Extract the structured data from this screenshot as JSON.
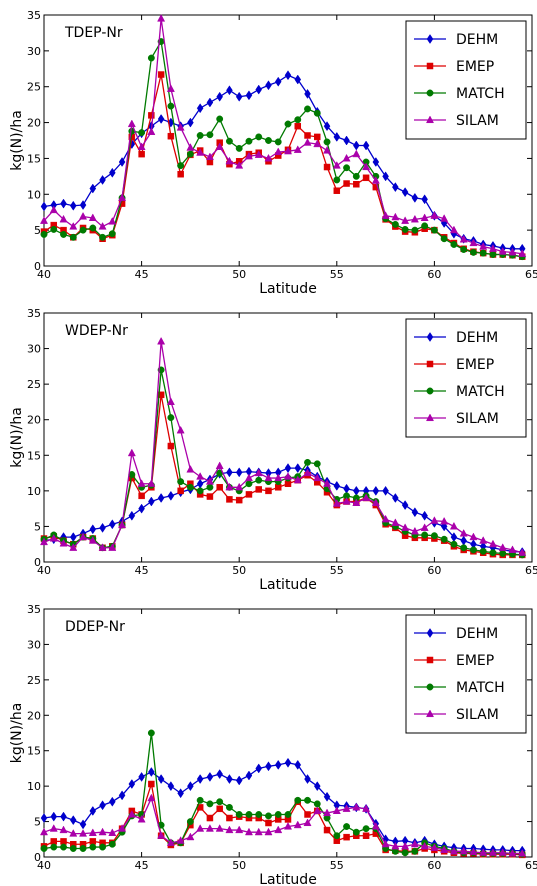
{
  "colors": {
    "DEHM": "#0000cc",
    "EMEP": "#dd0000",
    "MATCH": "#007a00",
    "SILAM": "#aa00aa"
  },
  "markers": {
    "DEHM": "diamond",
    "EMEP": "square",
    "MATCH": "circle",
    "SILAM": "triangle"
  },
  "chart_data": [
    {
      "type": "line",
      "panel_label": "TDEP-Nr",
      "xlabel": "Latitude",
      "ylabel": "kg(N)/ha",
      "xlim": [
        40,
        65
      ],
      "ylim": [
        0,
        35
      ],
      "xticks": [
        40,
        45,
        50,
        55,
        60,
        65
      ],
      "yticks": [
        0,
        5,
        10,
        15,
        20,
        25,
        30,
        35
      ],
      "legend_position": "top-right",
      "grid": false,
      "x": [
        40,
        40.5,
        41,
        41.5,
        42,
        42.5,
        43,
        43.5,
        44,
        44.5,
        45,
        45.5,
        46,
        46.5,
        47,
        47.5,
        48,
        48.5,
        49,
        49.5,
        50,
        50.5,
        51,
        51.5,
        52,
        52.5,
        53,
        53.5,
        54,
        54.5,
        55,
        55.5,
        56,
        56.5,
        57,
        57.5,
        58,
        58.5,
        59,
        59.5,
        60,
        60.5,
        61,
        61.5,
        62,
        62.5,
        63,
        63.5,
        64,
        64.5
      ],
      "series": [
        {
          "name": "DEHM",
          "values": [
            8.3,
            8.5,
            8.7,
            8.4,
            8.5,
            10.8,
            12.0,
            13.0,
            14.5,
            17.0,
            18.5,
            19.5,
            20.5,
            20.0,
            19.5,
            20.0,
            22.0,
            22.8,
            23.6,
            24.5,
            23.6,
            23.8,
            24.6,
            25.2,
            25.7,
            26.6,
            26.0,
            24.0,
            21.5,
            19.5,
            18.0,
            17.5,
            16.8,
            16.8,
            14.5,
            12.5,
            11.0,
            10.3,
            9.5,
            9.3,
            7.0,
            6.0,
            4.5,
            3.8,
            3.5,
            3.0,
            2.8,
            2.5,
            2.4,
            2.4
          ]
        },
        {
          "name": "EMEP",
          "values": [
            4.8,
            5.7,
            5.0,
            4.0,
            5.3,
            5.0,
            3.8,
            4.3,
            8.7,
            18.0,
            15.6,
            21.0,
            26.7,
            18.1,
            12.8,
            15.5,
            16.1,
            14.5,
            17.2,
            14.2,
            14.6,
            15.6,
            15.8,
            14.6,
            15.4,
            16.2,
            19.5,
            18.2,
            18.0,
            13.8,
            10.5,
            11.5,
            11.4,
            12.3,
            11.0,
            6.5,
            5.5,
            4.8,
            4.7,
            5.2,
            5.0,
            4.0,
            3.2,
            2.4,
            2.0,
            1.8,
            1.6,
            1.6,
            1.5,
            1.3
          ]
        },
        {
          "name": "MATCH",
          "values": [
            4.4,
            5.1,
            4.4,
            4.0,
            5.0,
            5.3,
            4.0,
            4.5,
            9.5,
            18.8,
            18.6,
            29.0,
            31.3,
            22.3,
            14.0,
            15.6,
            18.2,
            18.3,
            20.5,
            17.4,
            16.4,
            17.4,
            18.0,
            17.5,
            17.3,
            19.8,
            20.4,
            21.9,
            21.3,
            17.3,
            12.0,
            13.7,
            12.5,
            14.5,
            12.5,
            6.6,
            5.8,
            5.1,
            5.0,
            5.6,
            5.0,
            3.8,
            3.0,
            2.3,
            1.9,
            1.8,
            1.6,
            1.6,
            1.5,
            1.3
          ]
        },
        {
          "name": "SILAM",
          "values": [
            6.3,
            7.8,
            6.5,
            5.5,
            6.9,
            6.7,
            5.5,
            6.2,
            9.5,
            19.8,
            16.6,
            18.7,
            34.5,
            24.7,
            19.3,
            16.5,
            15.8,
            15.2,
            16.6,
            14.6,
            14.0,
            15.3,
            15.5,
            15.0,
            15.9,
            16.0,
            16.2,
            17.2,
            17.0,
            16.1,
            14.0,
            15.0,
            15.6,
            13.8,
            11.9,
            7.0,
            6.8,
            6.3,
            6.5,
            6.7,
            7.0,
            6.6,
            5.0,
            3.7,
            3.2,
            2.7,
            2.4,
            2.0,
            1.9,
            1.7
          ]
        }
      ]
    },
    {
      "type": "line",
      "panel_label": "WDEP-Nr",
      "xlabel": "Latitude",
      "ylabel": "kg(N)/ha",
      "xlim": [
        40,
        65
      ],
      "ylim": [
        0,
        35
      ],
      "xticks": [
        40,
        45,
        50,
        55,
        60,
        65
      ],
      "yticks": [
        0,
        5,
        10,
        15,
        20,
        25,
        30,
        35
      ],
      "legend_position": "top-right",
      "grid": false,
      "x": [
        40,
        40.5,
        41,
        41.5,
        42,
        42.5,
        43,
        43.5,
        44,
        44.5,
        45,
        45.5,
        46,
        46.5,
        47,
        47.5,
        48,
        48.5,
        49,
        49.5,
        50,
        50.5,
        51,
        51.5,
        52,
        52.5,
        53,
        53.5,
        54,
        54.5,
        55,
        55.5,
        56,
        56.5,
        57,
        57.5,
        58,
        58.5,
        59,
        59.5,
        60,
        60.5,
        61,
        61.5,
        62,
        62.5,
        63,
        63.5,
        64,
        64.5
      ],
      "series": [
        {
          "name": "DEHM",
          "values": [
            3.0,
            3.2,
            3.5,
            3.5,
            4.0,
            4.6,
            4.8,
            5.3,
            5.7,
            6.5,
            7.5,
            8.5,
            9.0,
            9.3,
            9.8,
            10.2,
            11.0,
            11.6,
            12.4,
            12.6,
            12.6,
            12.7,
            12.6,
            12.5,
            12.6,
            13.2,
            13.2,
            12.9,
            12.0,
            11.3,
            10.7,
            10.3,
            10.0,
            10.0,
            10.0,
            10.0,
            9.0,
            8.0,
            7.0,
            6.5,
            5.5,
            5.0,
            3.5,
            3.0,
            2.5,
            2.2,
            2.0,
            1.7,
            1.5,
            1.4
          ]
        },
        {
          "name": "EMEP",
          "values": [
            3.3,
            3.6,
            3.0,
            2.5,
            3.5,
            3.3,
            2.0,
            2.2,
            5.2,
            11.8,
            9.3,
            10.5,
            23.5,
            16.3,
            10.0,
            11.0,
            9.5,
            9.2,
            10.5,
            8.8,
            8.7,
            9.5,
            10.2,
            10.0,
            10.5,
            11.0,
            11.5,
            12.2,
            11.2,
            9.8,
            8.0,
            8.5,
            8.5,
            9.0,
            8.0,
            5.3,
            4.8,
            3.7,
            3.4,
            3.4,
            3.3,
            3.0,
            2.2,
            1.7,
            1.5,
            1.3,
            1.1,
            1.0,
            1.0,
            1.0
          ]
        },
        {
          "name": "MATCH",
          "values": [
            3.2,
            3.8,
            3.0,
            2.5,
            3.5,
            3.3,
            2.0,
            2.2,
            5.2,
            12.3,
            10.5,
            10.8,
            27.0,
            20.3,
            11.3,
            10.5,
            10.0,
            10.5,
            12.5,
            10.5,
            10.0,
            11.0,
            11.5,
            11.3,
            11.3,
            11.8,
            12.0,
            14.0,
            13.8,
            10.3,
            8.8,
            9.3,
            9.0,
            9.3,
            8.5,
            5.5,
            5.0,
            4.3,
            3.8,
            3.8,
            3.7,
            3.2,
            2.5,
            2.0,
            1.7,
            1.5,
            1.3,
            1.2,
            1.1,
            1.0
          ]
        },
        {
          "name": "SILAM",
          "values": [
            2.8,
            3.3,
            2.6,
            2.0,
            3.5,
            3.0,
            2.0,
            2.0,
            5.2,
            15.3,
            11.0,
            11.0,
            31.0,
            22.5,
            18.5,
            13.0,
            12.0,
            11.3,
            13.5,
            10.5,
            10.5,
            11.8,
            12.5,
            11.8,
            11.8,
            12.0,
            11.5,
            12.5,
            11.8,
            11.0,
            8.2,
            8.5,
            8.3,
            9.0,
            8.3,
            6.0,
            5.5,
            4.8,
            4.3,
            4.8,
            5.8,
            5.7,
            5.0,
            4.0,
            3.5,
            3.0,
            2.5,
            2.0,
            1.7,
            1.3
          ]
        }
      ]
    },
    {
      "type": "line",
      "panel_label": "DDEP-Nr",
      "xlabel": "Latitude",
      "ylabel": "kg(N)/ha",
      "xlim": [
        40,
        65
      ],
      "ylim": [
        0,
        35
      ],
      "xticks": [
        40,
        45,
        50,
        55,
        60,
        65
      ],
      "yticks": [
        0,
        5,
        10,
        15,
        20,
        25,
        30,
        35
      ],
      "legend_position": "top-right",
      "grid": false,
      "x": [
        40,
        40.5,
        41,
        41.5,
        42,
        42.5,
        43,
        43.5,
        44,
        44.5,
        45,
        45.5,
        46,
        46.5,
        47,
        47.5,
        48,
        48.5,
        49,
        49.5,
        50,
        50.5,
        51,
        51.5,
        52,
        52.5,
        53,
        53.5,
        54,
        54.5,
        55,
        55.5,
        56,
        56.5,
        57,
        57.5,
        58,
        58.5,
        59,
        59.5,
        60,
        60.5,
        61,
        61.5,
        62,
        62.5,
        63,
        63.5,
        64,
        64.5
      ],
      "series": [
        {
          "name": "DEHM",
          "values": [
            5.5,
            5.7,
            5.7,
            5.2,
            4.6,
            6.5,
            7.3,
            7.8,
            8.7,
            10.3,
            11.3,
            12.0,
            11.0,
            10.0,
            9.0,
            10.0,
            11.0,
            11.3,
            11.7,
            11.0,
            10.8,
            11.5,
            12.5,
            12.8,
            13.0,
            13.3,
            13.0,
            11.0,
            10.0,
            8.5,
            7.3,
            7.2,
            7.0,
            6.8,
            4.7,
            2.5,
            2.2,
            2.3,
            2.0,
            2.3,
            1.8,
            1.5,
            1.3,
            1.2,
            1.2,
            1.1,
            1.0,
            1.0,
            0.9,
            0.9
          ]
        },
        {
          "name": "EMEP",
          "values": [
            1.5,
            2.2,
            2.2,
            1.8,
            1.8,
            2.2,
            2.0,
            2.0,
            4.0,
            6.5,
            6.0,
            10.3,
            3.0,
            1.7,
            2.0,
            4.5,
            7.0,
            5.5,
            6.8,
            5.5,
            5.7,
            5.5,
            5.5,
            4.8,
            5.3,
            5.3,
            7.8,
            6.0,
            6.5,
            3.8,
            2.3,
            2.8,
            3.0,
            3.0,
            3.3,
            1.0,
            0.9,
            0.8,
            0.8,
            1.2,
            1.0,
            0.8,
            0.6,
            0.5,
            0.5,
            0.4,
            0.4,
            0.4,
            0.4,
            0.3
          ]
        },
        {
          "name": "MATCH",
          "values": [
            1.2,
            1.4,
            1.4,
            1.2,
            1.2,
            1.4,
            1.4,
            1.8,
            3.5,
            5.8,
            6.0,
            17.5,
            4.5,
            2.0,
            2.0,
            5.0,
            8.0,
            7.5,
            7.8,
            7.0,
            6.0,
            6.0,
            6.0,
            5.8,
            6.0,
            6.0,
            8.0,
            8.0,
            7.5,
            5.5,
            3.0,
            4.3,
            3.5,
            4.0,
            4.0,
            1.2,
            0.8,
            0.6,
            0.8,
            2.0,
            1.5,
            1.2,
            0.8,
            0.6,
            0.6,
            0.5,
            0.5,
            0.5,
            0.5,
            0.4
          ]
        },
        {
          "name": "SILAM",
          "values": [
            3.5,
            4.0,
            3.8,
            3.3,
            3.3,
            3.4,
            3.5,
            3.4,
            4.0,
            6.0,
            5.3,
            8.3,
            3.0,
            2.0,
            2.3,
            2.8,
            4.0,
            4.0,
            4.0,
            3.8,
            3.8,
            3.5,
            3.5,
            3.5,
            3.8,
            4.3,
            4.5,
            4.8,
            6.5,
            6.2,
            6.5,
            6.8,
            7.0,
            6.8,
            4.3,
            1.8,
            1.5,
            1.5,
            1.8,
            1.5,
            1.3,
            1.0,
            0.8,
            0.8,
            0.7,
            0.6,
            0.6,
            0.6,
            0.5,
            0.5
          ]
        }
      ]
    }
  ]
}
